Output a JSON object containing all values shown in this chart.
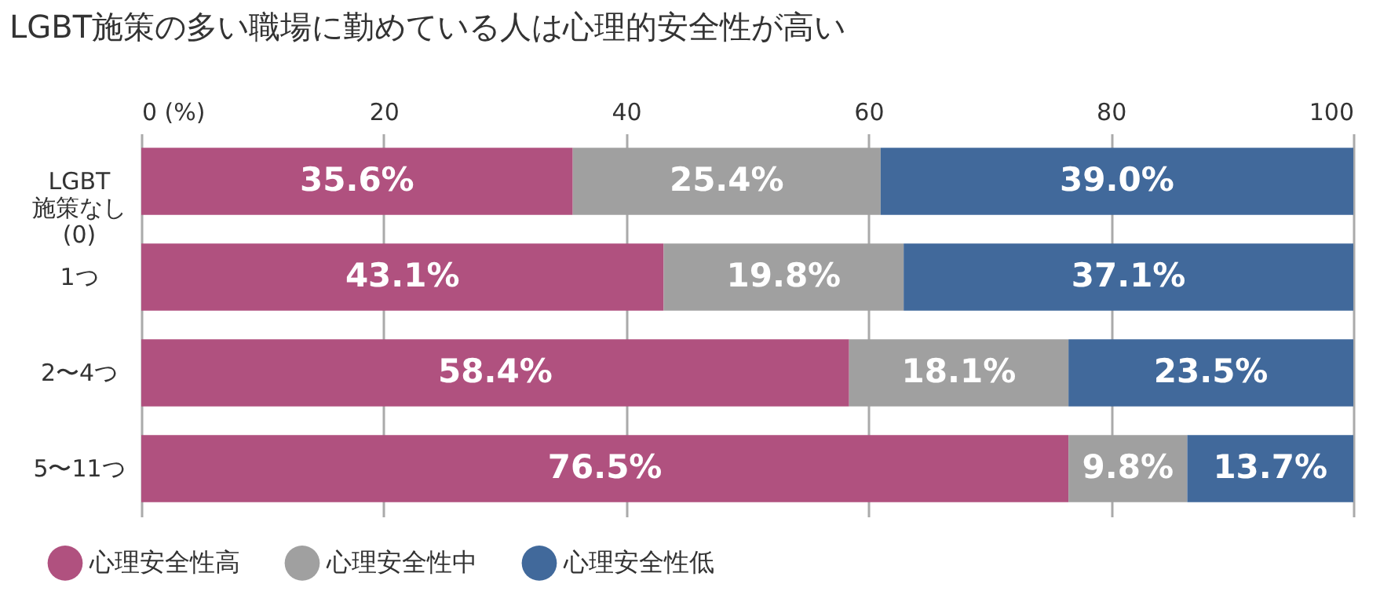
{
  "chart_data": {
    "type": "bar",
    "orientation": "horizontal",
    "stacked": true,
    "title": "LGBT施策の多い職場に勤めている人は心理的安全性が高い",
    "categories": [
      "LGBT\n施策なし\n(0)",
      "1つ",
      "2〜4つ",
      "5〜11つ"
    ],
    "series": [
      {
        "name": "心理安全性高",
        "color": "#b0517f",
        "values": [
          35.6,
          43.1,
          58.4,
          76.5
        ],
        "value_labels": [
          "35.6%",
          "43.1%",
          "58.4%",
          "76.5%"
        ]
      },
      {
        "name": "心理安全性中",
        "color": "#a0a0a0",
        "values": [
          25.4,
          19.8,
          18.1,
          9.8
        ],
        "value_labels": [
          "25.4%",
          "19.8%",
          "18.1%",
          "9.8%"
        ]
      },
      {
        "name": "心理安全性低",
        "color": "#41699b",
        "values": [
          39.0,
          37.1,
          23.5,
          13.7
        ],
        "value_labels": [
          "39.0%",
          "37.1%",
          "23.5%",
          "13.7%"
        ]
      }
    ],
    "xlim": [
      0,
      100
    ],
    "xticks": [
      {
        "value": 0,
        "label": "0 (%)"
      },
      20,
      40,
      60,
      80,
      100
    ],
    "grid": "x",
    "legend": "bottom"
  }
}
